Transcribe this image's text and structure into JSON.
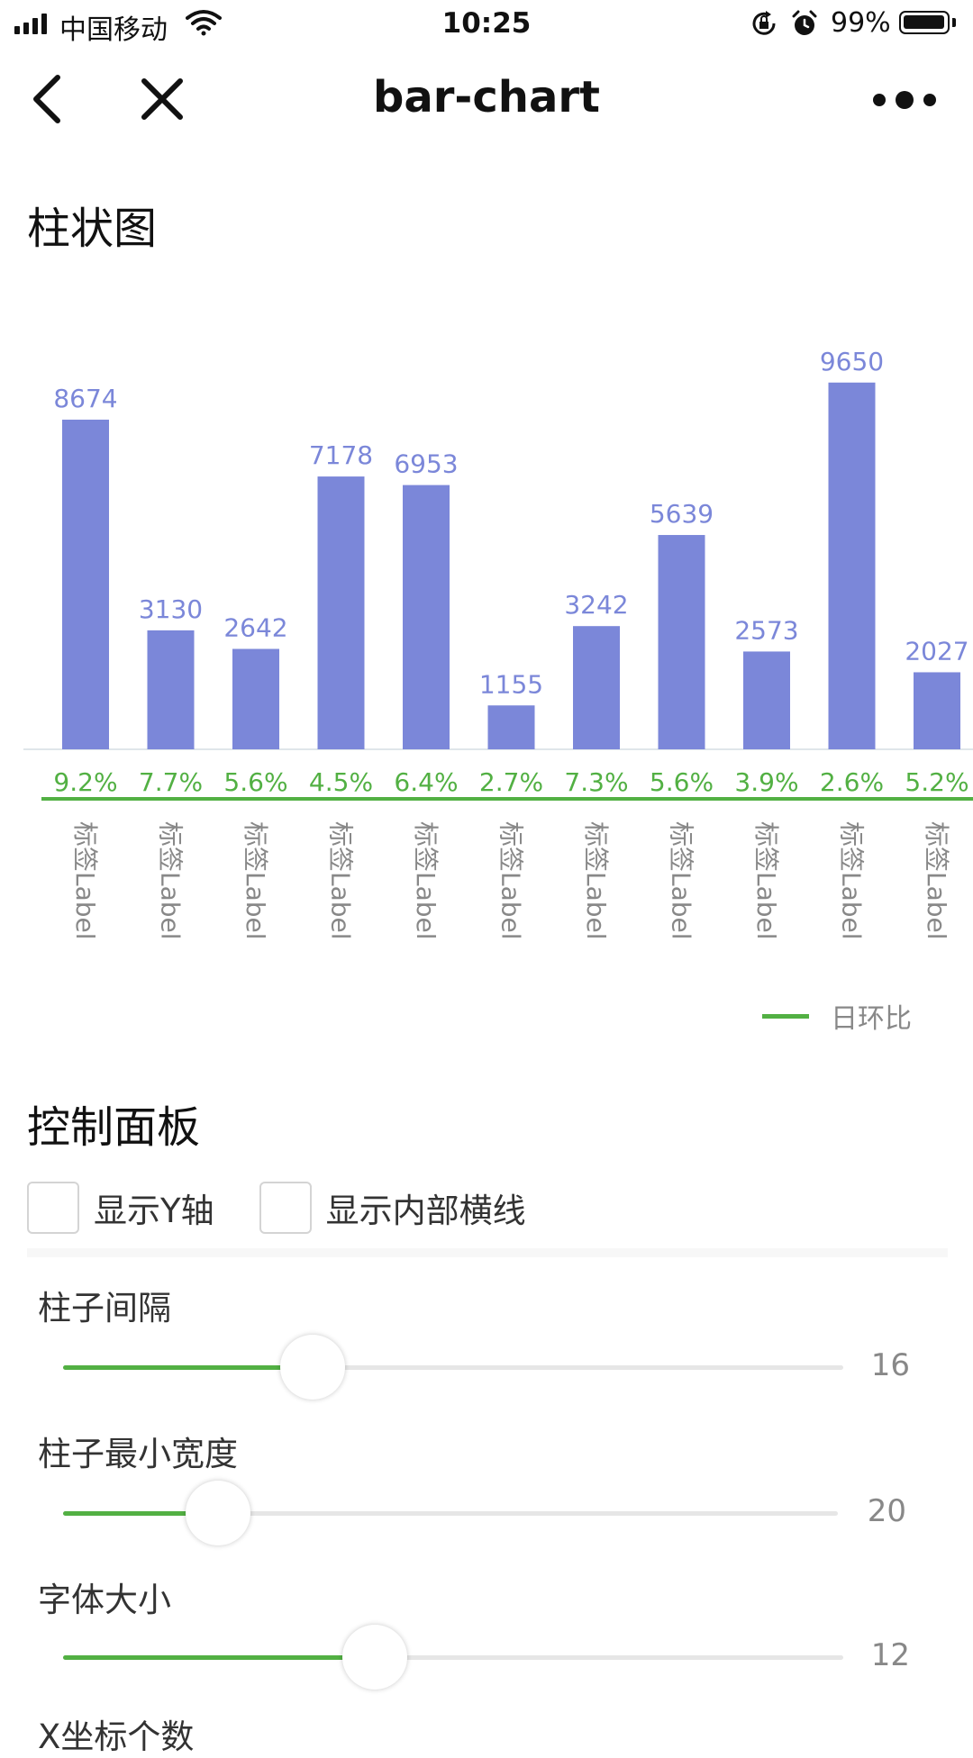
{
  "status_bar": {
    "carrier": "中国移动",
    "time": "10:25",
    "battery_text": "99%",
    "battery_level": 0.99,
    "icons": [
      "signal-icon",
      "wifi-icon",
      "rotation-lock-icon",
      "alarm-icon",
      "battery-icon"
    ]
  },
  "nav": {
    "title": "bar-chart",
    "icons": [
      "back-icon",
      "close-icon",
      "more-icon"
    ]
  },
  "chart_section": {
    "title": "柱状图"
  },
  "chart_data": {
    "type": "bar",
    "categories": [
      "标签Label",
      "标签Label",
      "标签Label",
      "标签Label",
      "标签Label",
      "标签Label",
      "标签Label",
      "标签Label",
      "标签Label",
      "标签Label",
      "标签Label"
    ],
    "values": [
      8674,
      3130,
      2642,
      7178,
      6953,
      1155,
      3242,
      5639,
      2573,
      9650,
      2027
    ],
    "value_labels": [
      "8674",
      "3130",
      "2642",
      "7178",
      "6953",
      "1155",
      "3242",
      "5639",
      "2573",
      "9650",
      "2027"
    ],
    "ratio_labels": [
      "9.2%",
      "7.7%",
      "5.6%",
      "4.5%",
      "6.4%",
      "2.7%",
      "7.3%",
      "5.6%",
      "3.9%",
      "2.6%",
      "5.2%"
    ],
    "ylim": [
      0,
      10000
    ],
    "bar_color": "#7b87d9",
    "ratio_color": "#52b043",
    "legend": [
      "日环比"
    ],
    "legend_placement": "bottom-right",
    "grid": false,
    "y_axis_visible": false
  },
  "control_panel": {
    "title": "控制面板",
    "checkboxes": [
      {
        "label": "显示Y轴",
        "checked": false
      },
      {
        "label": "显示内部横线",
        "checked": false
      }
    ],
    "sliders": [
      {
        "label": "柱子间隔",
        "value": "16",
        "fraction": 0.32
      },
      {
        "label": "柱子最小宽度",
        "value": "20",
        "fraction": 0.2
      },
      {
        "label": "字体大小",
        "value": "12",
        "fraction": 0.4
      }
    ],
    "next_label": "X坐标个数"
  },
  "colors": {
    "accent": "#52b043",
    "bar": "#7b87d9"
  }
}
